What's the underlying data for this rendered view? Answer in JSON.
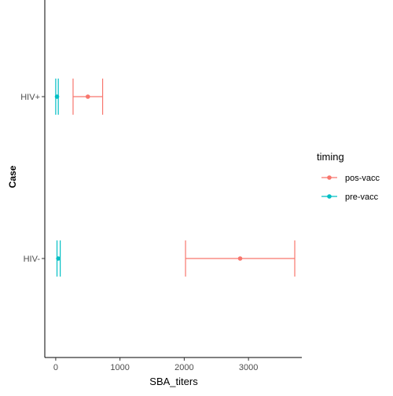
{
  "chart_data": {
    "type": "errorbar",
    "xlabel": "SBA_titers",
    "ylabel": "Case",
    "categories": [
      "HIV-",
      "HIV+"
    ],
    "x_ticks": [
      0,
      1000,
      2000,
      3000
    ],
    "xlim": [
      -170,
      3830
    ],
    "legend": {
      "title": "timing",
      "placement": "right"
    },
    "series": [
      {
        "name": "pos-vacc",
        "color": "#F8766D",
        "points": [
          {
            "category": "HIV+",
            "x": 500,
            "xmin": 270,
            "xmax": 730
          },
          {
            "category": "HIV-",
            "x": 2870,
            "xmin": 2020,
            "xmax": 3720
          }
        ]
      },
      {
        "name": "pre-vacc",
        "color": "#00BFC4",
        "points": [
          {
            "category": "HIV+",
            "x": 20,
            "xmin": 0,
            "xmax": 40
          },
          {
            "category": "HIV-",
            "x": 40,
            "xmin": 20,
            "xmax": 70
          }
        ]
      }
    ]
  }
}
